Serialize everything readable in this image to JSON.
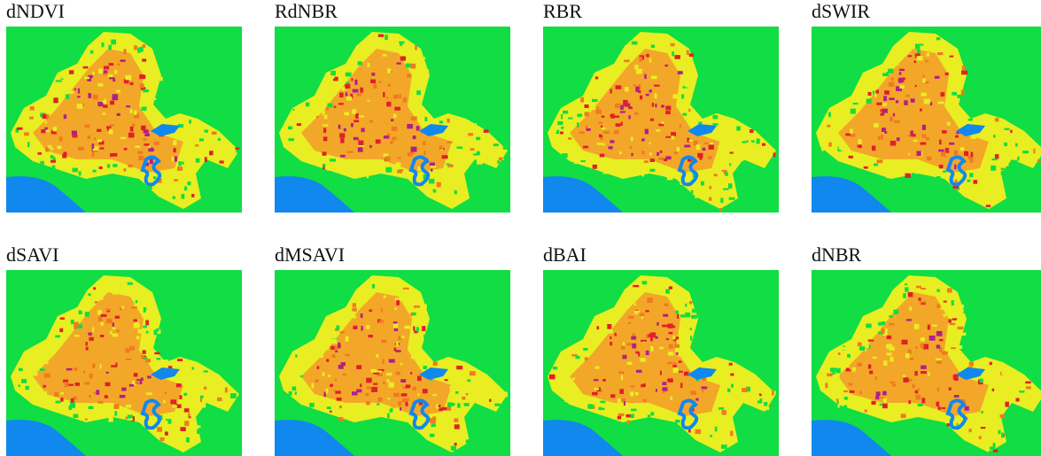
{
  "panels": [
    {
      "title": "dNDVI"
    },
    {
      "title": "RdNBR"
    },
    {
      "title": "RBR"
    },
    {
      "title": "dSWIR"
    },
    {
      "title": "dSAVI"
    },
    {
      "title": "dMSAVI"
    },
    {
      "title": "dBAI"
    },
    {
      "title": "dNBR"
    }
  ]
}
